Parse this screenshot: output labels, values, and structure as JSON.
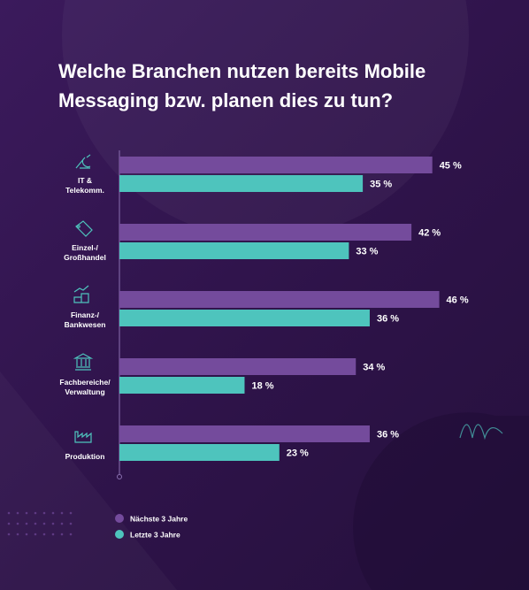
{
  "chart_data": {
    "type": "hbar",
    "title": "Welche Branchen nutzen bereits Mobile\nMessaging bzw. planen dies zu tun?",
    "categories": [
      "IT &\nTelekomm.",
      "Einzel-/\nGroßhandel",
      "Finanz-/\nBankwesen",
      "Fachbereiche/\nVerwaltung",
      "Produktion"
    ],
    "series": [
      {
        "name": "Nächste 3 Jahre",
        "color": "#744b9c",
        "values": [
          45,
          42,
          46,
          34,
          36
        ],
        "value_labels": [
          "45 %",
          "42 %",
          "46 %",
          "34 %",
          "36 %"
        ]
      },
      {
        "name": "Letzte 3 Jahre",
        "color": "#4ec4bd",
        "values": [
          35,
          33,
          36,
          18,
          23
        ],
        "value_labels": [
          "35 %",
          "33 %",
          "36 %",
          "18 %",
          "23 %"
        ]
      }
    ],
    "xlim": [
      0,
      50
    ]
  }
}
